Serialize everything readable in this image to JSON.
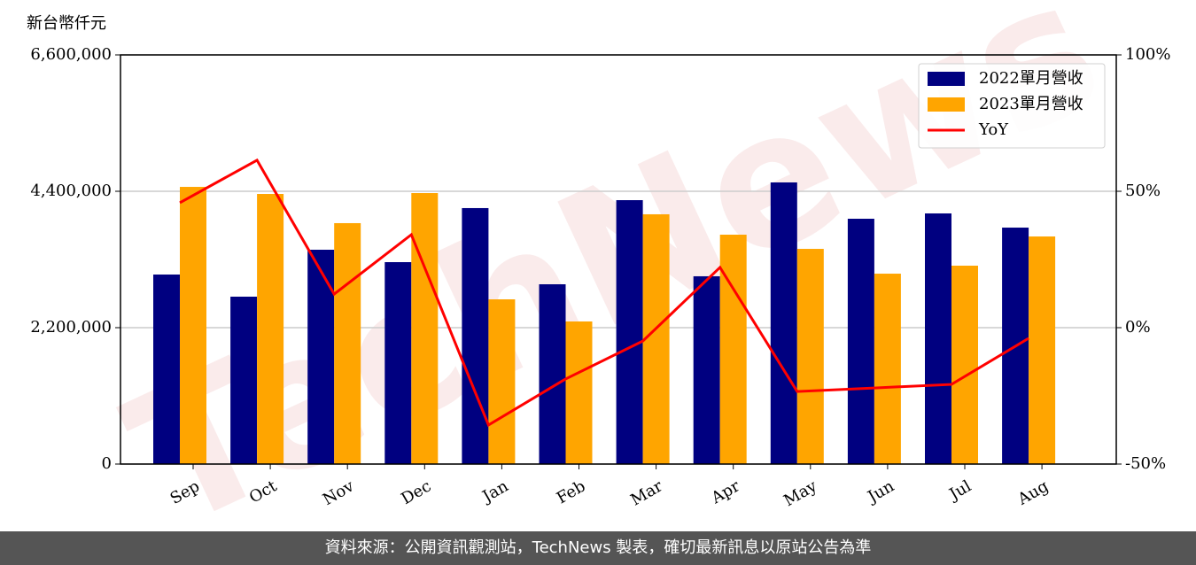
{
  "chart_data": {
    "type": "bar_line",
    "y_axis_label": "新台幣仟元",
    "categories": [
      "Sep",
      "Oct",
      "Nov",
      "Dec",
      "Jan",
      "Feb",
      "Mar",
      "Apr",
      "May",
      "Jun",
      "Jul",
      "Aug"
    ],
    "series": [
      {
        "name": "2022單月營收",
        "type": "bar",
        "color": "#000080",
        "values": [
          3057000,
          2700000,
          3457000,
          3257000,
          4129000,
          2900000,
          4257000,
          3029000,
          4543000,
          3957000,
          4043000,
          3814000
        ]
      },
      {
        "name": "2023單月營收",
        "type": "bar",
        "color": "#ffa500",
        "values": [
          4471000,
          4357000,
          3886000,
          4371000,
          2657000,
          2300000,
          4029000,
          3700000,
          3471000,
          3071000,
          3200000,
          3671000
        ]
      },
      {
        "name": "YoY",
        "type": "line",
        "axis": "y2",
        "color": "#ff0000",
        "values": [
          45.8,
          61.4,
          12.3,
          34.1,
          -35.7,
          -18.8,
          -4.9,
          22.1,
          -23.4,
          -22.1,
          -20.8,
          -3.9
        ]
      }
    ],
    "ylim": [
      0,
      6600000
    ],
    "yticks": [
      0,
      {
        "value": 2200000,
        "label": "2,200,000"
      },
      {
        "value": 4400000,
        "label": "4,400,000"
      },
      {
        "value": 6600000,
        "label": "6,600,000"
      }
    ],
    "y2lim": [
      -50,
      100
    ],
    "y2ticks": [
      {
        "value": -50,
        "label": "-50%"
      },
      {
        "value": 0,
        "label": "0%"
      },
      {
        "value": 50,
        "label": "50%"
      },
      {
        "value": 100,
        "label": "100%"
      }
    ],
    "grid": true,
    "legend": "upper right",
    "watermark": "TechNews"
  },
  "footer": "資料來源：公開資訊觀測站，TechNews 製表，確切最新訊息以原站公告為準"
}
